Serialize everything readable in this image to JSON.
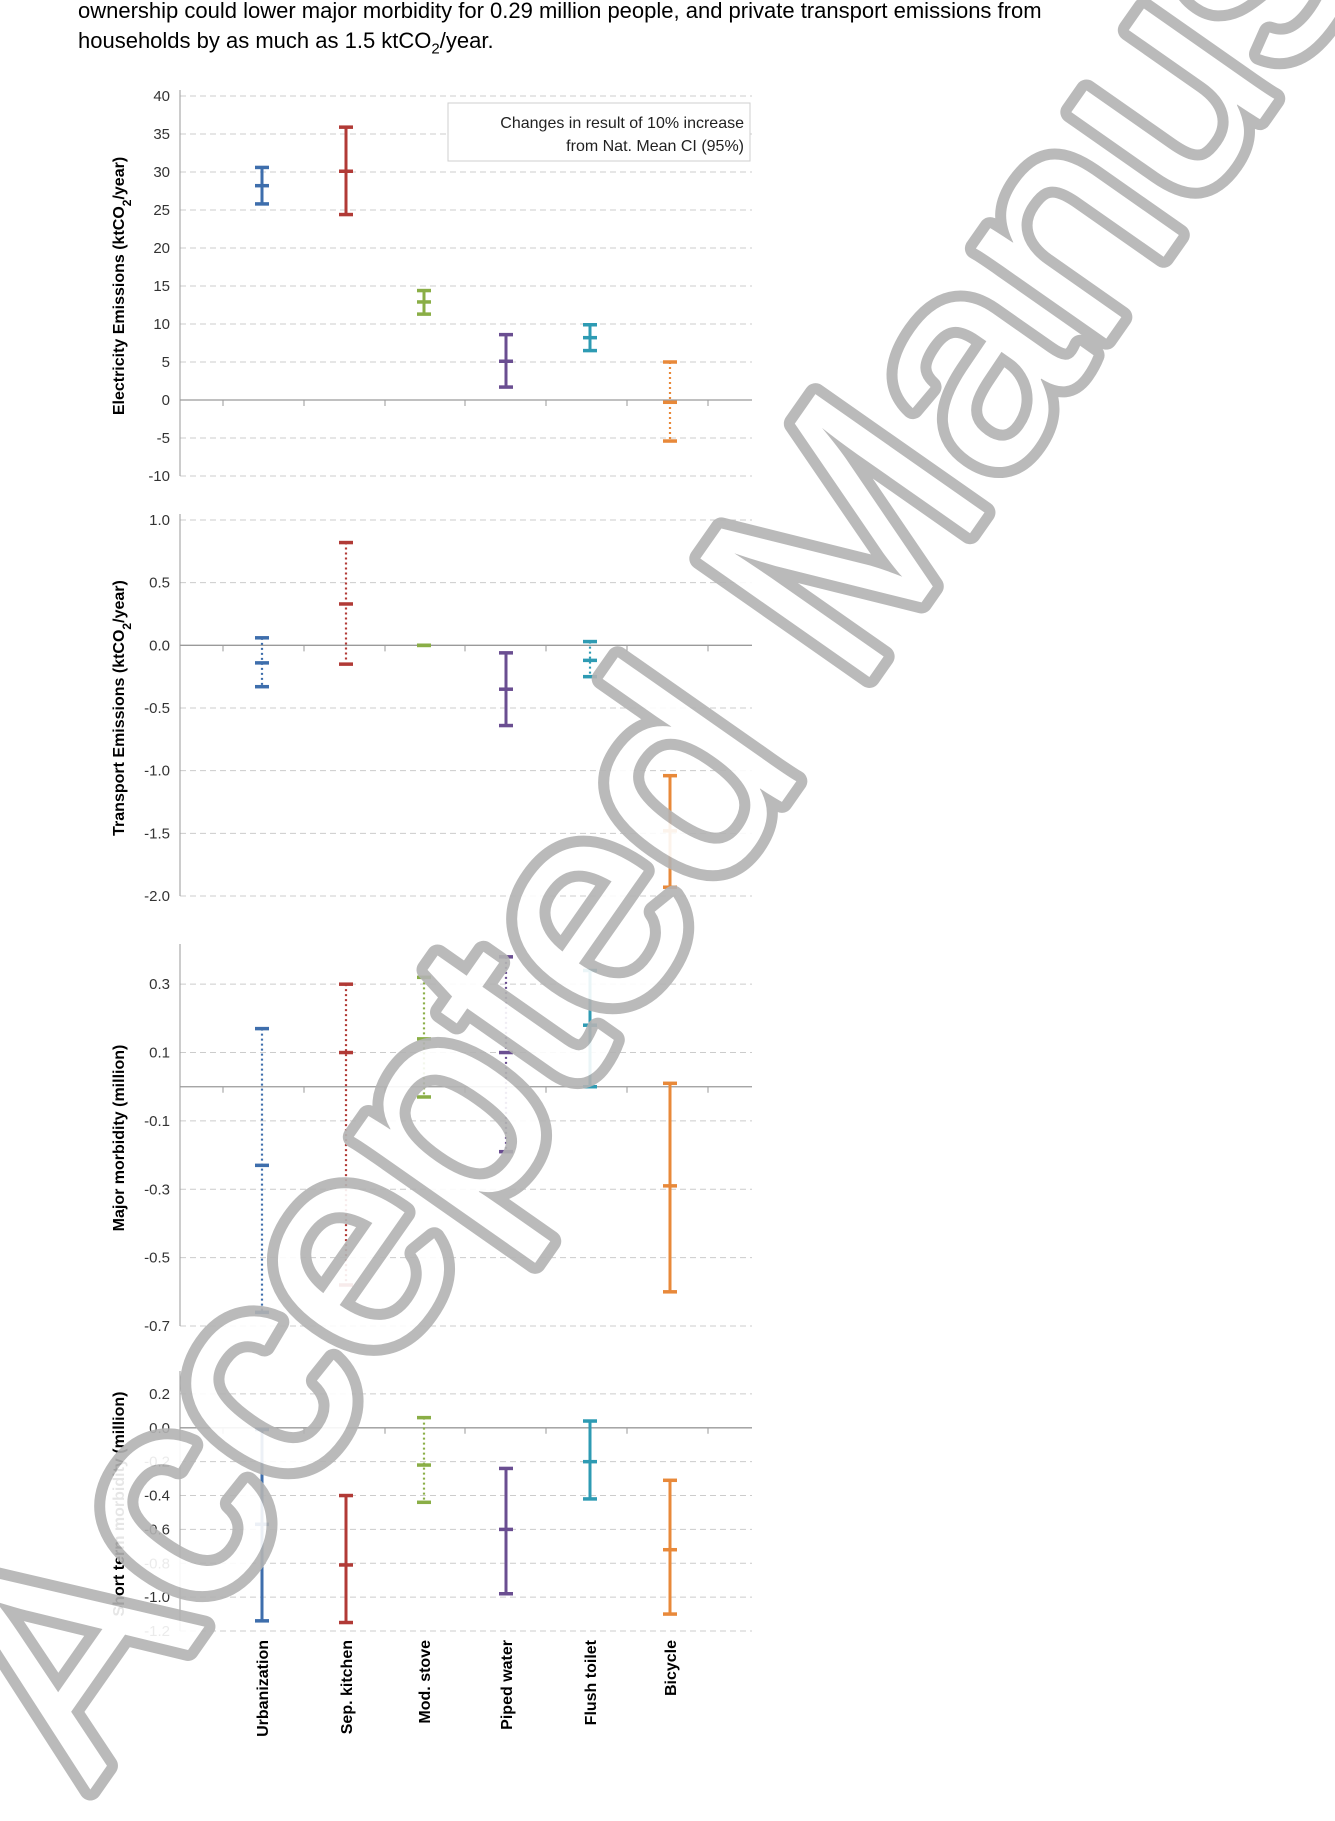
{
  "intro": {
    "line1": "ownership could lower major morbidity for 0.29 million people, and private transport emissions from",
    "line2_pre": "households by as much as 1.5 ktCO",
    "line2_sub": "2",
    "line2_post": "/year."
  },
  "watermark": {
    "text": "Accepted Manuscript",
    "color": "#b3b3b3"
  },
  "chart_data": {
    "type": "errorbar",
    "categories": [
      "Urbanization",
      "Sep. kitchen",
      "Mod. stove",
      "Piped water",
      "Flush toilet",
      "Bicycle"
    ],
    "colors": [
      "#3E6EAC",
      "#B13A36",
      "#8AAE46",
      "#6A4E91",
      "#2E9BB3",
      "#E8893A"
    ],
    "annotation": {
      "line1": "Changes in result of 10% increase",
      "line2": "from Nat. Mean CI (95%)"
    },
    "panels": [
      {
        "ylabel_pre": "Electricity Emissions (ktCO",
        "ylabel_sub": "2",
        "ylabel_post": "/year)",
        "ylim": [
          -10,
          40
        ],
        "ticks": [
          "40",
          "35",
          "30",
          "25",
          "20",
          "15",
          "10",
          "5",
          "0",
          "-5",
          "-10"
        ],
        "tick_values": [
          40,
          35,
          30,
          25,
          20,
          15,
          10,
          5,
          0,
          -5,
          -10
        ],
        "bars": [
          {
            "low": 25.8,
            "mid": 28.2,
            "high": 30.6,
            "style": "solid"
          },
          {
            "low": 24.4,
            "mid": 30.1,
            "high": 35.9,
            "style": "solid"
          },
          {
            "low": 11.3,
            "mid": 12.9,
            "high": 14.4,
            "style": "solid"
          },
          {
            "low": 1.7,
            "mid": 5.1,
            "high": 8.6,
            "style": "solid"
          },
          {
            "low": 6.5,
            "mid": 8.2,
            "high": 9.9,
            "style": "solid"
          },
          {
            "low": -5.4,
            "mid": -0.3,
            "high": 5.0,
            "style": "dotted"
          }
        ]
      },
      {
        "ylabel_pre": "Transport Emissions (ktCO",
        "ylabel_sub": "2",
        "ylabel_post": "/year)",
        "ylim": [
          -2.0,
          1.0
        ],
        "ticks": [
          "1.0",
          "0.5",
          "0.0",
          "-0.5",
          "-1.0",
          "-1.5",
          "-2.0"
        ],
        "tick_values": [
          1.0,
          0.5,
          0.0,
          -0.5,
          -1.0,
          -1.5,
          -2.0
        ],
        "bars": [
          {
            "low": -0.33,
            "mid": -0.14,
            "high": 0.06,
            "style": "dotted"
          },
          {
            "low": -0.15,
            "mid": 0.33,
            "high": 0.82,
            "style": "dotted"
          },
          {
            "low": 0.0,
            "mid": 0.0,
            "high": 0.0,
            "style": "solid"
          },
          {
            "low": -0.64,
            "mid": -0.35,
            "high": -0.06,
            "style": "solid"
          },
          {
            "low": -0.25,
            "mid": -0.12,
            "high": 0.03,
            "style": "dotted"
          },
          {
            "low": -1.93,
            "mid": -1.48,
            "high": -1.04,
            "style": "solid"
          }
        ]
      },
      {
        "ylabel_pre": "Major morbidity (million)",
        "ylabel_sub": "",
        "ylabel_post": "",
        "ylim": [
          -0.7,
          0.4
        ],
        "ticks": [
          "0.3",
          "0.1",
          "-0.1",
          "-0.3",
          "-0.5",
          "-0.7"
        ],
        "tick_values": [
          0.3,
          0.1,
          -0.1,
          -0.3,
          -0.5,
          -0.7
        ],
        "bars": [
          {
            "low": -0.66,
            "mid": -0.23,
            "high": 0.17,
            "style": "dotted"
          },
          {
            "low": -0.58,
            "mid": 0.1,
            "high": 0.3,
            "style": "dotted"
          },
          {
            "low": -0.03,
            "mid": 0.14,
            "high": 0.32,
            "style": "dotted"
          },
          {
            "low": -0.19,
            "mid": 0.1,
            "high": 0.38,
            "style": "dotted"
          },
          {
            "low": 0.0,
            "mid": 0.18,
            "high": 0.34,
            "style": "solid"
          },
          {
            "low": -0.6,
            "mid": -0.29,
            "high": 0.01,
            "style": "solid"
          }
        ]
      },
      {
        "ylabel_pre": "Short term morbidity (million)",
        "ylabel_sub": "",
        "ylabel_post": "",
        "ylim": [
          -1.2,
          0.3
        ],
        "ticks": [
          "0.2",
          "0.0",
          "-0.2",
          "-0.4",
          "-0.6",
          "-0.8",
          "-1.0",
          "-1.2"
        ],
        "tick_values": [
          0.2,
          0.0,
          -0.2,
          -0.4,
          -0.6,
          -0.8,
          -1.0,
          -1.2
        ],
        "bars": [
          {
            "low": -1.14,
            "mid": -0.57,
            "high": -0.01,
            "style": "solid"
          },
          {
            "low": -1.15,
            "mid": -0.81,
            "high": -0.4,
            "style": "solid"
          },
          {
            "low": -0.44,
            "mid": -0.22,
            "high": 0.06,
            "style": "dotted"
          },
          {
            "low": -0.98,
            "mid": -0.6,
            "high": -0.24,
            "style": "solid"
          },
          {
            "low": -0.42,
            "mid": -0.2,
            "high": 0.04,
            "style": "solid"
          },
          {
            "low": -1.1,
            "mid": -0.72,
            "high": -0.31,
            "style": "solid"
          }
        ]
      }
    ]
  }
}
